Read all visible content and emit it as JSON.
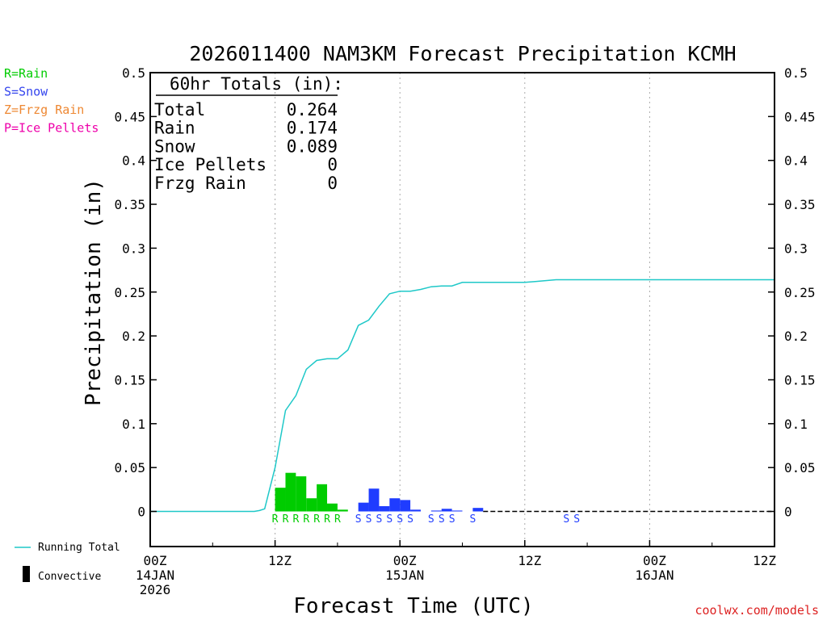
{
  "chart_data": {
    "type": "bar",
    "title": "2026011400 NAM3KM Forecast Precipitation KCMH",
    "xlabel": "Forecast Time (UTC)",
    "ylabel": "Precipitation (in)",
    "ylim": [
      -0.04,
      0.5
    ],
    "y_ticks": [
      0,
      0.05,
      0.1,
      0.15,
      0.2,
      0.25,
      0.3,
      0.35,
      0.4,
      0.45,
      0.5
    ],
    "y_tick_labels": [
      "0",
      "0.05",
      "0.1",
      "0.15",
      "0.2",
      "0.25",
      "0.3",
      "0.35",
      "0.4",
      "0.45",
      "0.5"
    ],
    "xlim": [
      0,
      60
    ],
    "x_ticks": [
      {
        "hour": 0,
        "lines": [
          "00Z",
          "14JAN",
          "2026"
        ]
      },
      {
        "hour": 12,
        "lines": [
          "12Z"
        ]
      },
      {
        "hour": 24,
        "lines": [
          "00Z",
          "15JAN"
        ]
      },
      {
        "hour": 36,
        "lines": [
          "12Z"
        ]
      },
      {
        "hour": 48,
        "lines": [
          "00Z",
          "16JAN"
        ]
      },
      {
        "hour": 60,
        "lines": [
          "12Z"
        ]
      }
    ],
    "vertical_grid_hours": [
      12,
      24,
      36,
      48
    ],
    "bars": [
      {
        "hour": 12,
        "value": 0.027,
        "type": "R"
      },
      {
        "hour": 13,
        "value": 0.044,
        "type": "R"
      },
      {
        "hour": 14,
        "value": 0.04,
        "type": "R"
      },
      {
        "hour": 15,
        "value": 0.015,
        "type": "R"
      },
      {
        "hour": 16,
        "value": 0.031,
        "type": "R"
      },
      {
        "hour": 17,
        "value": 0.009,
        "type": "R"
      },
      {
        "hour": 18,
        "value": 0.002,
        "type": "R"
      },
      {
        "hour": 20,
        "value": 0.01,
        "type": "S"
      },
      {
        "hour": 21,
        "value": 0.026,
        "type": "S"
      },
      {
        "hour": 22,
        "value": 0.006,
        "type": "S"
      },
      {
        "hour": 23,
        "value": 0.015,
        "type": "S"
      },
      {
        "hour": 24,
        "value": 0.013,
        "type": "S"
      },
      {
        "hour": 25,
        "value": 0.002,
        "type": "S"
      },
      {
        "hour": 27,
        "value": 0.001,
        "type": "S"
      },
      {
        "hour": 28,
        "value": 0.003,
        "type": "S"
      },
      {
        "hour": 29,
        "value": 0.001,
        "type": "S"
      },
      {
        "hour": 31,
        "value": 0.004,
        "type": "S"
      }
    ],
    "ptype_markers": [
      {
        "hour": 11.5,
        "letter": "R"
      },
      {
        "hour": 12.5,
        "letter": "R"
      },
      {
        "hour": 13.5,
        "letter": "R"
      },
      {
        "hour": 14.5,
        "letter": "R"
      },
      {
        "hour": 15.5,
        "letter": "R"
      },
      {
        "hour": 16.5,
        "letter": "R"
      },
      {
        "hour": 17.5,
        "letter": "R"
      },
      {
        "hour": 19.5,
        "letter": "S"
      },
      {
        "hour": 20.5,
        "letter": "S"
      },
      {
        "hour": 21.5,
        "letter": "S"
      },
      {
        "hour": 22.5,
        "letter": "S"
      },
      {
        "hour": 23.5,
        "letter": "S"
      },
      {
        "hour": 24.5,
        "letter": "S"
      },
      {
        "hour": 26.5,
        "letter": "S"
      },
      {
        "hour": 27.5,
        "letter": "S"
      },
      {
        "hour": 28.5,
        "letter": "S"
      },
      {
        "hour": 30.5,
        "letter": "S"
      },
      {
        "hour": 39.5,
        "letter": "S"
      },
      {
        "hour": 40.5,
        "letter": "S"
      }
    ],
    "running_total": {
      "name": "Running Total",
      "points": [
        [
          0,
          0
        ],
        [
          10,
          0
        ],
        [
          10.5,
          0.001
        ],
        [
          11,
          0.003
        ],
        [
          12,
          0.05
        ],
        [
          13,
          0.115
        ],
        [
          14,
          0.132
        ],
        [
          15,
          0.162
        ],
        [
          16,
          0.172
        ],
        [
          17,
          0.174
        ],
        [
          18,
          0.174
        ],
        [
          19,
          0.184
        ],
        [
          20,
          0.212
        ],
        [
          21,
          0.218
        ],
        [
          22,
          0.234
        ],
        [
          23,
          0.248
        ],
        [
          24,
          0.251
        ],
        [
          25,
          0.251
        ],
        [
          26,
          0.253
        ],
        [
          27,
          0.256
        ],
        [
          28,
          0.257
        ],
        [
          29,
          0.257
        ],
        [
          30,
          0.261
        ],
        [
          31,
          0.261
        ],
        [
          36,
          0.261
        ],
        [
          37,
          0.262
        ],
        [
          39,
          0.264
        ],
        [
          60,
          0.264
        ]
      ]
    },
    "totals_box": {
      "header": "60hr Totals (in):",
      "rows": [
        {
          "label": "Total",
          "value": "0.264"
        },
        {
          "label": "Rain",
          "value": "0.174"
        },
        {
          "label": "Snow",
          "value": "0.089"
        },
        {
          "label": "Ice Pellets",
          "value": "0"
        },
        {
          "label": "Frzg Rain",
          "value": "0"
        }
      ]
    },
    "type_legend": [
      {
        "key": "R",
        "text": "R=Rain",
        "color": "#00cc00"
      },
      {
        "key": "S",
        "text": "S=Snow",
        "color": "#3344ee"
      },
      {
        "key": "Z",
        "text": "Z=Frzg Rain",
        "color": "#ee8833"
      },
      {
        "key": "P",
        "text": "P=Ice Pellets",
        "color": "#ee00aa"
      }
    ],
    "line_legend": [
      {
        "kind": "line",
        "text": "Running Total"
      },
      {
        "kind": "bar",
        "text": "Convective"
      }
    ],
    "colors": {
      "rain": "#00cc00",
      "snow": "#1f3cff",
      "running_total": "#1ec8c8",
      "grid": "#aaaaaa",
      "axis": "#000000",
      "credit": "#dd2222"
    },
    "credit": "coolwx.com/models"
  }
}
